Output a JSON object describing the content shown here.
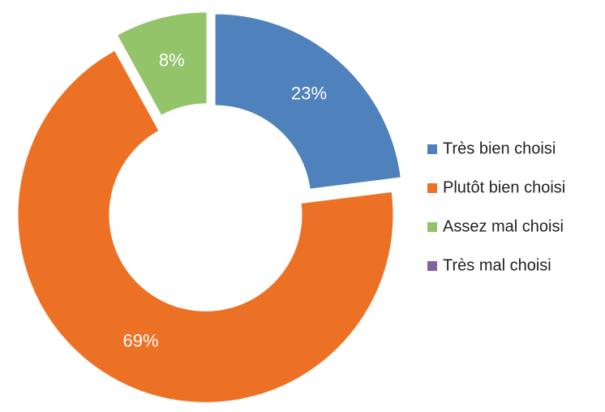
{
  "chart_data": {
    "type": "donut",
    "categories": [
      "Très bien choisi",
      "Plutôt bien choisi",
      "Assez mal choisi",
      "Très mal choisi"
    ],
    "values": [
      23,
      69,
      8,
      0
    ],
    "value_labels": [
      "23%",
      "69%",
      "8%",
      null
    ],
    "colors": [
      "#4f81bd",
      "#ed7125",
      "#93c46a",
      "#8064a2"
    ],
    "legend": "right"
  }
}
